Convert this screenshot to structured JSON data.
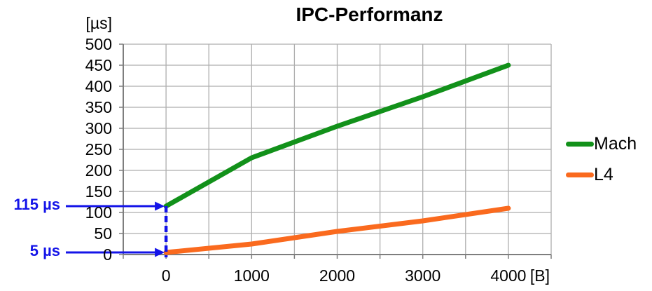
{
  "title": "IPC-Performanz",
  "axes": {
    "y_unit_label": "[µs]",
    "x_unit_label": "[B]"
  },
  "legend": {
    "items": [
      {
        "label": "Mach",
        "color": "#12911A"
      },
      {
        "label": "L4",
        "color": "#FA6A1E"
      }
    ]
  },
  "annotations": [
    {
      "label": "115 µs",
      "target_x": 0,
      "target_y": 115
    },
    {
      "label": "5 µs",
      "target_x": 0,
      "target_y": 5
    }
  ],
  "colors": {
    "annotation_blue": "#1414E8",
    "grid": "#AEAEAE",
    "axis": "#7E7E7E",
    "text": "#000000",
    "background": "#FFFFFF"
  },
  "chart_data": {
    "type": "line",
    "title": "IPC-Performanz",
    "xlabel": "[B]",
    "ylabel": "[µs]",
    "x": [
      0,
      1000,
      2000,
      3000,
      4000
    ],
    "series": [
      {
        "name": "Mach",
        "color": "#12911A",
        "values": [
          115,
          230,
          305,
          375,
          450
        ]
      },
      {
        "name": "L4",
        "color": "#FA6A1E",
        "values": [
          5,
          25,
          55,
          80,
          110
        ]
      }
    ],
    "xlim": [
      -500,
      4500
    ],
    "ylim": [
      0,
      500
    ],
    "x_ticks": [
      0,
      1000,
      2000,
      3000,
      4000
    ],
    "y_ticks": [
      0,
      50,
      100,
      150,
      200,
      250,
      300,
      350,
      400,
      450,
      500
    ],
    "x_grid_step": 500,
    "y_grid_step": 50,
    "grid": true,
    "legend_position": "right",
    "annotations": [
      {
        "text": "115 µs",
        "series": "Mach",
        "target_x": 0,
        "target_y": 115
      },
      {
        "text": "5 µs",
        "series": "L4",
        "target_x": 0,
        "target_y": 5
      }
    ]
  }
}
